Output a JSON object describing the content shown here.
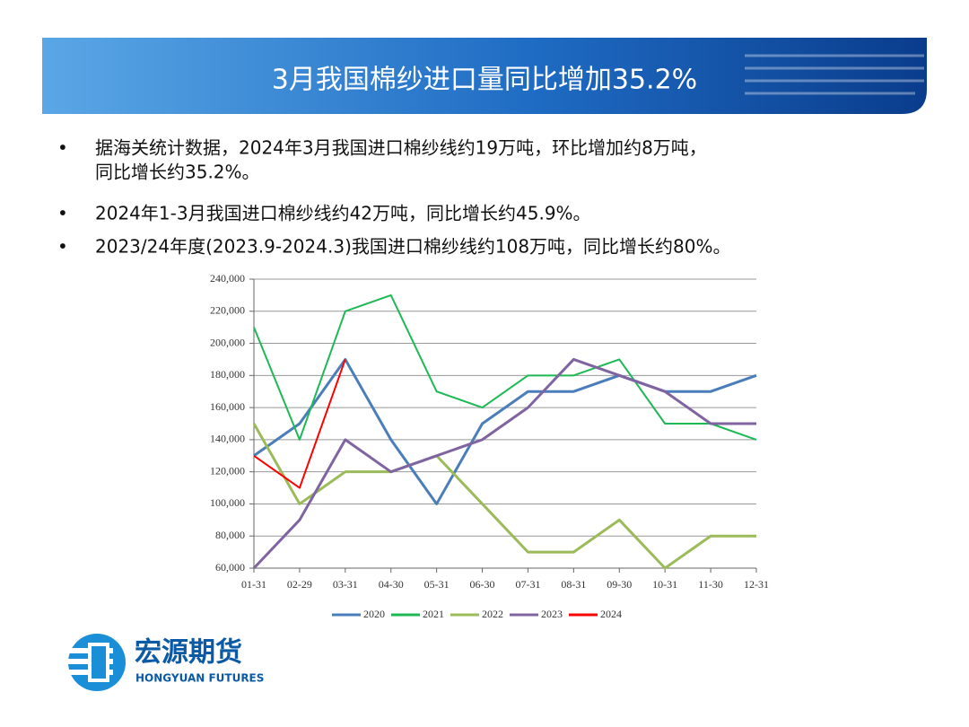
{
  "title": "3月我国棉纱进口量同比增加35.2%",
  "bullets": [
    [
      "据海关统计数据，2024年3月我国进口棉纱线约19万吨，环比增加约8万吨，",
      "同比增长约35.2%。"
    ],
    [
      "2024年1-3月我国进口棉纱线约42万吨，同比增长约45.9%。"
    ],
    [
      "2023/24年度(2023.9-2024.3)我国进口棉纱线约108万吨，同比增长约80%。"
    ]
  ],
  "logo": {
    "name": "宏源期货",
    "english": "HONGYUAN FUTURES"
  },
  "chart_data": {
    "type": "line",
    "categories": [
      "01-31",
      "02-29",
      "03-31",
      "04-30",
      "05-31",
      "06-30",
      "07-31",
      "08-31",
      "09-30",
      "10-31",
      "11-30",
      "12-31"
    ],
    "series": [
      {
        "name": "2020",
        "color": "#4a7ebb",
        "values": [
          130000,
          150000,
          190000,
          140000,
          100000,
          150000,
          170000,
          170000,
          180000,
          170000,
          170000,
          180000
        ]
      },
      {
        "name": "2021",
        "color": "#1db954",
        "values": [
          210000,
          140000,
          220000,
          230000,
          170000,
          160000,
          180000,
          180000,
          190000,
          150000,
          150000,
          140000
        ]
      },
      {
        "name": "2022",
        "color": "#9bbb59",
        "values": [
          150000,
          100000,
          120000,
          120000,
          130000,
          100000,
          70000,
          70000,
          90000,
          60000,
          80000,
          80000
        ]
      },
      {
        "name": "2023",
        "color": "#8064a2",
        "values": [
          60000,
          90000,
          140000,
          120000,
          130000,
          140000,
          160000,
          190000,
          180000,
          170000,
          150000,
          150000
        ]
      },
      {
        "name": "2024",
        "color": "#ff0000",
        "values": [
          130000,
          110000,
          190000,
          null,
          null,
          null,
          null,
          null,
          null,
          null,
          null,
          null
        ]
      }
    ],
    "ylim": [
      60000,
      240000
    ],
    "yticks": [
      {
        "value": 60000,
        "label": "60,000"
      },
      {
        "value": 80000,
        "label": "80,000"
      },
      {
        "value": 100000,
        "label": "100,000"
      },
      {
        "value": 120000,
        "label": "120,000"
      },
      {
        "value": 140000,
        "label": "140,000"
      },
      {
        "value": 160000,
        "label": "160,000"
      },
      {
        "value": 180000,
        "label": "180,000"
      },
      {
        "value": 200000,
        "label": "200,000"
      },
      {
        "value": 220000,
        "label": "220,000"
      },
      {
        "value": 240000,
        "label": "240,000"
      }
    ],
    "grid": true,
    "legend": "bottom"
  }
}
